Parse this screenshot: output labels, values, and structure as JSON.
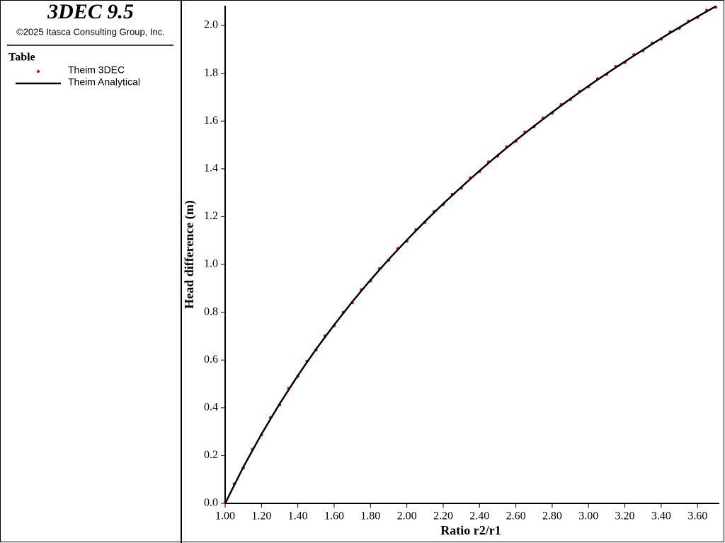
{
  "header": {
    "title": "3DEC 9.5",
    "copyright": "©2025 Itasca Consulting Group, Inc."
  },
  "legend_title": "Table",
  "chart_data": {
    "type": "scatter-line",
    "xlabel": "Ratio r2/r1",
    "ylabel": "Head difference (m)",
    "xlim": [
      1.0,
      3.72
    ],
    "ylim": [
      0,
      2.083
    ],
    "xticks": [
      {
        "value": 1.0,
        "label": "1.00"
      },
      {
        "value": 1.2,
        "label": "1.20"
      },
      {
        "value": 1.4,
        "label": "1.40"
      },
      {
        "value": 1.6,
        "label": "1.60"
      },
      {
        "value": 1.8,
        "label": "1.80"
      },
      {
        "value": 2.0,
        "label": "2.00"
      },
      {
        "value": 2.2,
        "label": "2.20"
      },
      {
        "value": 2.4,
        "label": "2.40"
      },
      {
        "value": 2.6,
        "label": "2.60"
      },
      {
        "value": 2.8,
        "label": "2.80"
      },
      {
        "value": 3.0,
        "label": "3.00"
      },
      {
        "value": 3.2,
        "label": "3.20"
      },
      {
        "value": 3.4,
        "label": "3.40"
      },
      {
        "value": 3.6,
        "label": "3.60"
      }
    ],
    "yticks": [
      {
        "value": 0,
        "label": "0.0"
      },
      {
        "value": 0.2,
        "label": "0.2"
      },
      {
        "value": 0.4,
        "label": "0.4"
      },
      {
        "value": 0.6,
        "label": "0.6"
      },
      {
        "value": 0.8,
        "label": "0.8"
      },
      {
        "value": 1.0,
        "label": "1.0"
      },
      {
        "value": 1.2,
        "label": "1.2"
      },
      {
        "value": 1.4,
        "label": "1.4"
      },
      {
        "value": 1.6,
        "label": "1.6"
      },
      {
        "value": 1.8,
        "label": "1.8"
      },
      {
        "value": 2.0,
        "label": "2.0"
      }
    ],
    "series": [
      {
        "name": "Theim 3DEC",
        "type": "scatter",
        "color": "#e00000",
        "x": [
          1.0,
          1.05,
          1.1,
          1.15,
          1.2,
          1.25,
          1.3,
          1.35,
          1.4,
          1.45,
          1.5,
          1.55,
          1.6,
          1.65,
          1.7,
          1.75,
          1.8,
          1.85,
          1.9,
          1.95,
          2.0,
          2.05,
          2.1,
          2.15,
          2.2,
          2.25,
          2.3,
          2.35,
          2.4,
          2.45,
          2.5,
          2.55,
          2.6,
          2.65,
          2.7,
          2.75,
          2.8,
          2.85,
          2.9,
          2.95,
          3.0,
          3.05,
          3.1,
          3.15,
          3.2,
          3.25,
          3.3,
          3.35,
          3.4,
          3.45,
          3.5,
          3.55,
          3.6,
          3.65,
          3.7
        ],
        "values": [
          0.005,
          0.081,
          0.149,
          0.226,
          0.287,
          0.359,
          0.413,
          0.481,
          0.532,
          0.595,
          0.642,
          0.701,
          0.744,
          0.799,
          0.84,
          0.894,
          0.931,
          0.982,
          1.018,
          1.066,
          1.098,
          1.145,
          1.176,
          1.221,
          1.251,
          1.293,
          1.32,
          1.362,
          1.389,
          1.429,
          1.454,
          1.492,
          1.516,
          1.554,
          1.576,
          1.612,
          1.634,
          1.669,
          1.69,
          1.724,
          1.744,
          1.777,
          1.796,
          1.828,
          1.846,
          1.878,
          1.895,
          1.926,
          1.943,
          1.973,
          1.989,
          2.018,
          2.034,
          2.063,
          2.077
        ]
      },
      {
        "name": "Theim Analytical",
        "type": "line",
        "color": "#000000",
        "x": [
          1.0,
          1.1,
          1.2,
          1.3,
          1.4,
          1.5,
          1.6,
          1.7,
          1.8,
          1.9,
          2.0,
          2.1,
          2.2,
          2.3,
          2.4,
          2.5,
          2.6,
          2.7,
          2.8,
          2.9,
          3.0,
          3.1,
          3.2,
          3.3,
          3.4,
          3.5,
          3.6,
          3.7
        ],
        "values": [
          0,
          0.152,
          0.29,
          0.417,
          0.535,
          0.645,
          0.747,
          0.844,
          0.935,
          1.021,
          1.102,
          1.18,
          1.254,
          1.324,
          1.392,
          1.457,
          1.519,
          1.579,
          1.637,
          1.693,
          1.747,
          1.799,
          1.849,
          1.898,
          1.946,
          1.992,
          2.037,
          2.08
        ]
      }
    ]
  }
}
